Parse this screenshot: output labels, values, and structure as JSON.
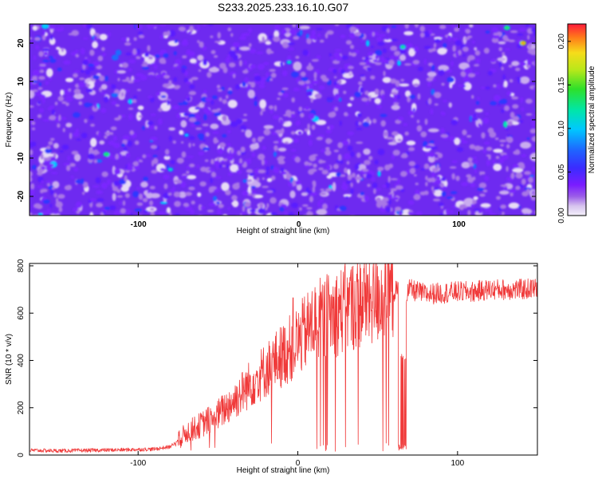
{
  "figure_title": "S233.2025.233.16.10.G07",
  "colors": {
    "snr_line": "#f03a3a",
    "axis": "#000000",
    "background": "#ffffff",
    "colormap": [
      "#f2eef8",
      "#d8c6ee",
      "#a877e6",
      "#7a25ff",
      "#5a1cff",
      "#2d37ff",
      "#1f6cff",
      "#00c8ff",
      "#00e6b4",
      "#22e03a",
      "#9fe61a",
      "#f5e31a",
      "#ff8a1a",
      "#ff1a1a"
    ]
  },
  "chart_data": [
    {
      "id": "spectrogram",
      "type": "heatmap",
      "title": "S233.2025.233.16.10.G07",
      "xlabel": "Height of straight line (km)",
      "ylabel": "Frequency (Hz)",
      "xlim": [
        -168,
        148
      ],
      "ylim": [
        -25,
        25
      ],
      "xticks": [
        -100,
        0,
        100
      ],
      "xtick_labels": [
        "-100",
        "0",
        "100"
      ],
      "yticks": [
        -20,
        -10,
        0,
        10,
        20
      ],
      "ytick_labels": [
        "-20",
        "-10",
        "0",
        "10",
        "20"
      ],
      "colorbar": {
        "label": "Normalized spectral amplitude",
        "range": [
          0.0,
          0.22
        ],
        "ticks": [
          0.0,
          0.05,
          0.1,
          0.15,
          0.2
        ],
        "tick_labels": [
          "0.00",
          "0.05",
          "0.10",
          "0.15",
          "0.20"
        ]
      },
      "description_values": {
        "background_level": 0.03,
        "typical_peak": 0.08,
        "max_peak": 0.2
      }
    },
    {
      "id": "snr",
      "type": "line",
      "xlabel": "Height of straight line (km)",
      "ylabel": "SNR (10 * v/v)",
      "xlim": [
        -168,
        150
      ],
      "ylim": [
        0,
        810
      ],
      "xticks": [
        -100,
        0,
        100
      ],
      "xtick_labels": [
        "-100",
        "0",
        "100"
      ],
      "yticks": [
        0,
        200,
        400,
        600,
        800
      ],
      "ytick_labels": [
        "0",
        "200",
        "400",
        "600",
        "800"
      ],
      "series": [
        {
          "name": "SNR",
          "x": [
            -168,
            -150,
            -130,
            -110,
            -90,
            -80,
            -75,
            -70,
            -60,
            -50,
            -40,
            -30,
            -20,
            -10,
            -5,
            0,
            10,
            20,
            30,
            40,
            50,
            60,
            65,
            68,
            70,
            80,
            90,
            100,
            110,
            120,
            130,
            140,
            150
          ],
          "y": [
            20,
            18,
            20,
            22,
            25,
            35,
            60,
            95,
            130,
            170,
            230,
            300,
            360,
            420,
            450,
            480,
            560,
            590,
            620,
            650,
            670,
            690,
            700,
            680,
            700,
            680,
            685,
            690,
            690,
            700,
            700,
            700,
            705
          ]
        }
      ]
    }
  ]
}
